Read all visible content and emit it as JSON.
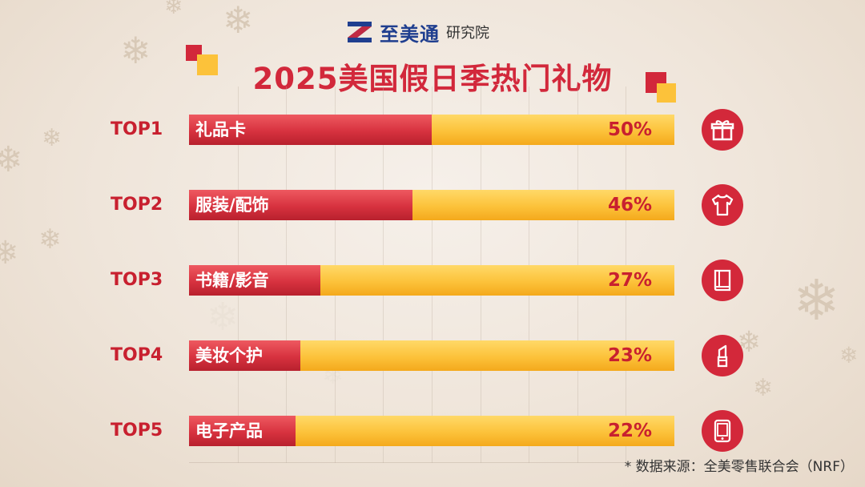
{
  "brand": {
    "name": "至美通",
    "sub": "研究院",
    "color": "#1f3e8f"
  },
  "title": "2025美国假日季热门礼物",
  "source_note": "* 数据来源：全美零售联合会（NRF）",
  "colors": {
    "accent": "#d2283b",
    "bar_fill": "#d7323f",
    "bar_track": "#fcc23a"
  },
  "chart_data": {
    "type": "bar",
    "orientation": "horizontal",
    "title": "2025美国假日季热门礼物",
    "xlim": [
      0,
      100
    ],
    "grid": true,
    "legend": "none",
    "ranks": [
      "TOP1",
      "TOP2",
      "TOP3",
      "TOP4",
      "TOP5"
    ],
    "categories": [
      "礼品卡",
      "服装/配饰",
      "书籍/影音",
      "美妆个护",
      "电子产品"
    ],
    "values": [
      50,
      46,
      27,
      23,
      22
    ],
    "value_labels": [
      "50%",
      "46%",
      "27%",
      "23%",
      "22%"
    ],
    "icons": [
      "gift-icon",
      "tshirt-icon",
      "book-icon",
      "lipstick-icon",
      "tablet-icon"
    ]
  }
}
